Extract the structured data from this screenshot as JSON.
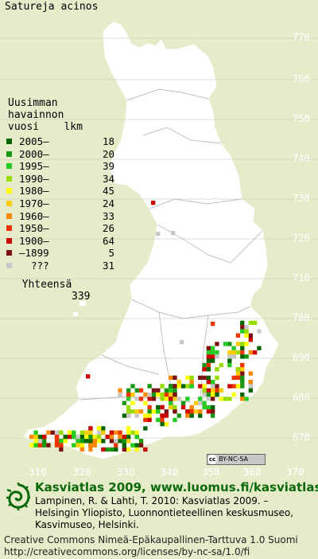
{
  "title": "Satureja acinos",
  "legend": {
    "heading": [
      "Uusimman",
      "havainnon",
      "vuosi    lkm"
    ],
    "rows": [
      {
        "label": "2005–",
        "count": "18",
        "color": "#006400"
      },
      {
        "label": "2000–",
        "count": "20",
        "color": "#149614"
      },
      {
        "label": "1995–",
        "count": "39",
        "color": "#22cc22"
      },
      {
        "label": "1990–",
        "count": "34",
        "color": "#99dd00"
      },
      {
        "label": "1980–",
        "count": "45",
        "color": "#ffff00"
      },
      {
        "label": "1970–",
        "count": "24",
        "color": "#ffcc00"
      },
      {
        "label": "1960–",
        "count": "33",
        "color": "#ff8800"
      },
      {
        "label": "1950–",
        "count": "26",
        "color": "#ee3300"
      },
      {
        "label": "1900–",
        "count": "64",
        "color": "#cc0000"
      },
      {
        "label": "–1899",
        "count": "5",
        "color": "#7a1010"
      },
      {
        "label": "  ???",
        "count": "31",
        "color": "#c8c8c8"
      }
    ],
    "total_label": "Yhteensä",
    "total_count": "339"
  },
  "grid_lat_labels": [
    "770",
    "760",
    "750",
    "740",
    "730",
    "720",
    "710",
    "700",
    "690",
    "680",
    "670"
  ],
  "grid_lon_labels": [
    "310",
    "320",
    "330",
    "340",
    "350",
    "360",
    "370"
  ],
  "cc_badge": "BY-NC-SA",
  "brand_title": "Kasviatlas 2009, www.luomus.fi/kasviatlas",
  "citation": [
    "Lampinen, R. & Lahti, T. 2010: Kasviatlas 2009. –",
    "Helsingin Yliopisto, Luonnontieteellinen keskusmuseo,",
    "Kasvimuseo, Helsinki."
  ],
  "license": [
    "Creative Commons Nimeä-Epäkaupallinen-Tarttuva 1.0 Suomi",
    "http://creativecommons.org/licenses/by-nc-sa/1.0/fi"
  ]
}
